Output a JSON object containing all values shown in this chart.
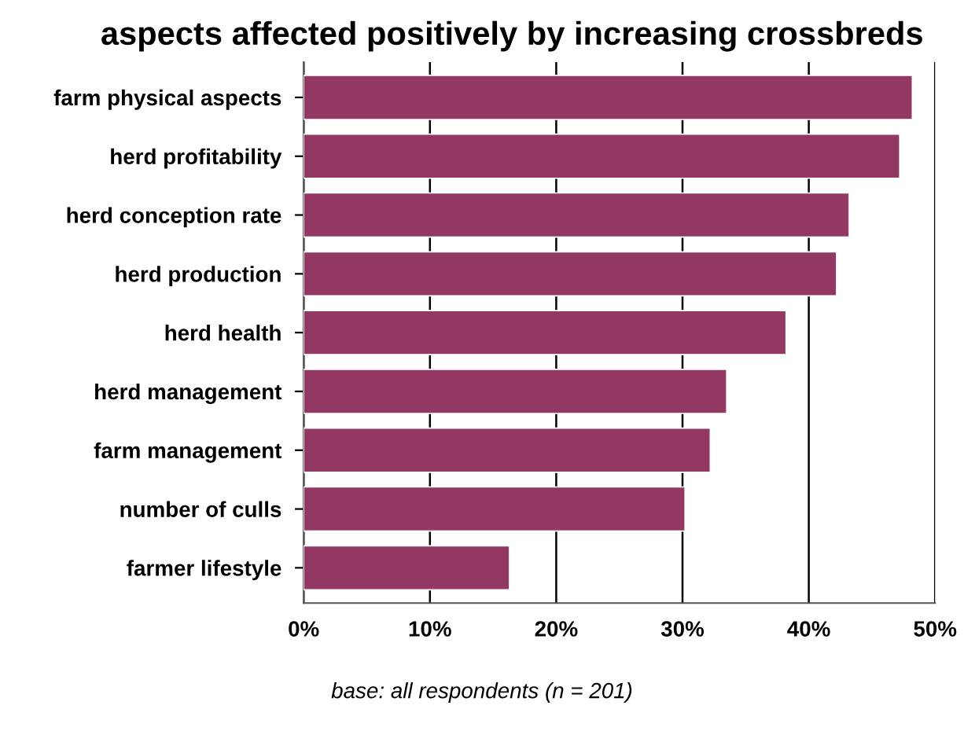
{
  "chart_data": {
    "type": "bar",
    "orientation": "horizontal",
    "title": "aspects affected positively by increasing crossbreds",
    "categories": [
      "farm physical aspects",
      "herd profitability",
      "herd conception rate",
      "herd production",
      "herd health",
      "herd management",
      "farm management",
      "number of culls",
      "farmer lifestyle"
    ],
    "values": [
      48.2,
      47.2,
      43.2,
      42.2,
      38.2,
      33.5,
      32.2,
      30.2,
      16.3
    ],
    "color": "#923862",
    "xlim": [
      0,
      50
    ],
    "xticks": [
      {
        "value": 0,
        "label": "0%"
      },
      {
        "value": 10,
        "label": "10%"
      },
      {
        "value": 20,
        "label": "20%"
      },
      {
        "value": 30,
        "label": "30%"
      },
      {
        "value": 40,
        "label": "40%"
      },
      {
        "value": 50,
        "label": "50%"
      }
    ],
    "grid": "x",
    "annotations": [
      "base: all respondents (n = 201)"
    ]
  }
}
